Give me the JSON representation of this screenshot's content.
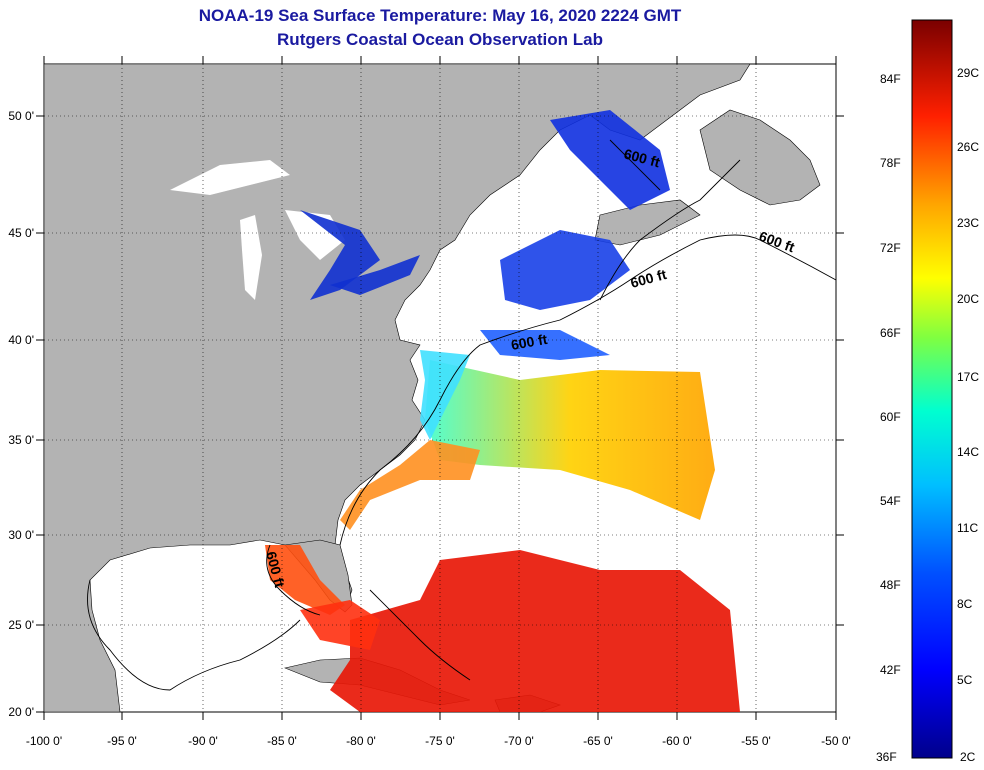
{
  "title": {
    "line1": "NOAA-19 Sea Surface Temperature:  May 16, 2020 2224 GMT",
    "line2": "Rutgers Coastal Ocean Observation Lab"
  },
  "map": {
    "lon_range": [
      -100,
      -50
    ],
    "lat_range": [
      20,
      52.5
    ],
    "lat_ticks": [
      "50 0'",
      "45 0'",
      "40 0'",
      "35 0'",
      "30 0'",
      "25 0'",
      "20 0'"
    ],
    "lon_ticks": [
      "-100 0'",
      "-95 0'",
      "-90 0'",
      "-85 0'",
      "-80 0'",
      "-75 0'",
      "-70 0'",
      "-65 0'",
      "-60 0'",
      "-55 0'",
      "-50 0'"
    ],
    "contour_labels": [
      "600 ft",
      "600 ft",
      "600 ft",
      "600 ft",
      "600 ft"
    ]
  },
  "colorbar": {
    "fahrenheit": [
      "84F",
      "78F",
      "72F",
      "66F",
      "60F",
      "54F",
      "48F",
      "42F",
      "36F"
    ],
    "celsius": [
      "29C",
      "26C",
      "23C",
      "20C",
      "17C",
      "14C",
      "11C",
      "8C",
      "5C",
      "2C"
    ]
  },
  "colors": {
    "land": "#b3b3b3",
    "title": "#1a1aa0",
    "no_data": "#ffffff"
  }
}
